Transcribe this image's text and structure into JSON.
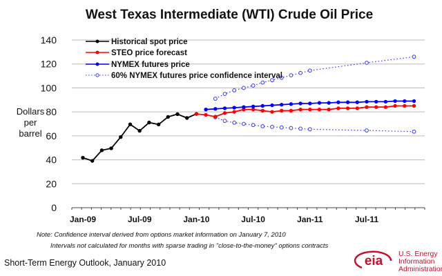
{
  "chart_data": {
    "type": "line",
    "title": "West Texas Intermediate (WTI) Crude Oil Price",
    "ylabel": [
      "Dollars",
      "per",
      "barrel"
    ],
    "xlabel": "",
    "ylim": [
      0,
      140
    ],
    "yticks": [
      "0",
      "20",
      "40",
      "60",
      "80",
      "100",
      "120",
      "140"
    ],
    "ytick_values": [
      0,
      20,
      40,
      60,
      80,
      100,
      120,
      140
    ],
    "x_months": 36,
    "x_start": "Jan-09",
    "xticks": [
      {
        "label": "Jan-09",
        "month": 0
      },
      {
        "label": "Jul-09",
        "month": 6
      },
      {
        "label": "Jan-10",
        "month": 12
      },
      {
        "label": "Jul-10",
        "month": 18
      },
      {
        "label": "Jan-11",
        "month": 24
      },
      {
        "label": "Jul-11",
        "month": 30
      }
    ],
    "grid": true,
    "legend_placement": "top-left",
    "series": [
      {
        "name": "Historical spot price",
        "color": "#000000",
        "style": "solid",
        "marker": "filled",
        "months": [
          0,
          1,
          2,
          3,
          4,
          5,
          6,
          7,
          8,
          9,
          10,
          11,
          12
        ],
        "values": [
          41.7,
          39.1,
          47.9,
          49.6,
          59.0,
          69.6,
          64.2,
          71.1,
          69.5,
          75.8,
          78.1,
          74.9,
          78.3
        ]
      },
      {
        "name": "STEO price forecast",
        "color": "#ff0000",
        "style": "solid",
        "marker": "filled",
        "months": [
          12,
          13,
          14,
          15,
          16,
          17,
          18,
          19,
          20,
          21,
          22,
          23,
          24,
          25,
          26,
          27,
          28,
          29,
          30,
          31,
          32,
          33,
          34,
          35
        ],
        "values": [
          78.3,
          77.5,
          76,
          79,
          80,
          82,
          82,
          81,
          80,
          81,
          81,
          82,
          82,
          82,
          82,
          83,
          83,
          83,
          84,
          84,
          84,
          85,
          85,
          85
        ]
      },
      {
        "name": "NYMEX futures price",
        "color": "#0000ff",
        "style": "solid",
        "marker": "filled",
        "months": [
          13,
          14,
          15,
          16,
          17,
          18,
          19,
          20,
          21,
          22,
          23,
          24,
          25,
          26,
          27,
          28,
          29,
          30,
          31,
          32,
          33,
          34,
          35
        ],
        "values": [
          82,
          82.5,
          83,
          83.5,
          84,
          84.5,
          85,
          85.5,
          86,
          86.5,
          87,
          87,
          87.5,
          87.5,
          88,
          88,
          88,
          88.5,
          88.5,
          88.5,
          89,
          89,
          89
        ]
      },
      {
        "name": "60% NYMEX futures price confidence interval",
        "color": "#3333ff",
        "style": "dotted",
        "marker": "hollow",
        "months": [
          14,
          15,
          16,
          17,
          18,
          19,
          20,
          21,
          22,
          23,
          24,
          30,
          35
        ],
        "values": [
          91,
          95,
          98,
          100,
          102,
          104.5,
          106.5,
          108.5,
          110.5,
          112.5,
          114.5,
          121,
          126
        ]
      },
      {
        "name": "60% NYMEX futures price confidence interval (lower)",
        "color": "#3333ff",
        "style": "dotted",
        "marker": "hollow",
        "legend": false,
        "months": [
          14,
          15,
          16,
          17,
          18,
          19,
          20,
          21,
          22,
          23,
          24,
          30,
          35
        ],
        "values": [
          75.5,
          72.5,
          71,
          70,
          69,
          68,
          67.5,
          67,
          66.5,
          66,
          65.5,
          64.5,
          63.5
        ]
      }
    ],
    "annotations": [
      "Note: Confidence interval derived from options market information on January 7, 2010",
      "Intervals not calculated for months with sparse trading in \"close-to-the-money\" options contracts"
    ]
  },
  "legend": [
    "Historical spot price",
    "STEO price forecast",
    "NYMEX futures price",
    "60% NYMEX futures price confidence interval"
  ],
  "footer": {
    "source": "Short-Term Energy Outlook, January 2010",
    "logo_text": "eia",
    "logo_lines": [
      "U.S. Energy",
      "Information",
      "Administration"
    ]
  }
}
